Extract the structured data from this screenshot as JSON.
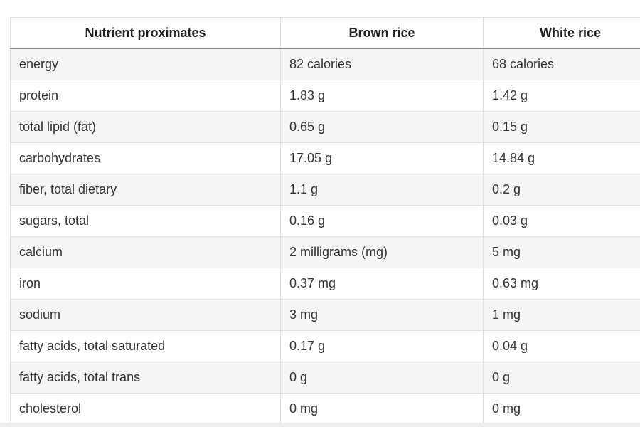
{
  "table": {
    "headers": [
      "Nutrient proximates",
      "Brown rice",
      "White rice"
    ],
    "rows": [
      [
        "energy",
        "82 calories",
        "68 calories"
      ],
      [
        "protein",
        "1.83 g",
        "1.42 g"
      ],
      [
        "total lipid (fat)",
        "0.65 g",
        "0.15 g"
      ],
      [
        "carbohydrates",
        "17.05 g",
        "14.84 g"
      ],
      [
        "fiber, total dietary",
        "1.1 g",
        "0.2 g"
      ],
      [
        "sugars, total",
        "0.16 g",
        "0.03 g"
      ],
      [
        "calcium",
        "2 milligrams (mg)",
        "5 mg"
      ],
      [
        "iron",
        "0.37 mg",
        "0.63 mg"
      ],
      [
        "sodium",
        "3 mg",
        "1 mg"
      ],
      [
        "fatty acids, total saturated",
        "0.17 g",
        "0.04 g"
      ],
      [
        "fatty acids, total trans",
        "0 g",
        "0 g"
      ],
      [
        "cholesterol",
        "0 mg",
        "0 mg"
      ]
    ]
  }
}
